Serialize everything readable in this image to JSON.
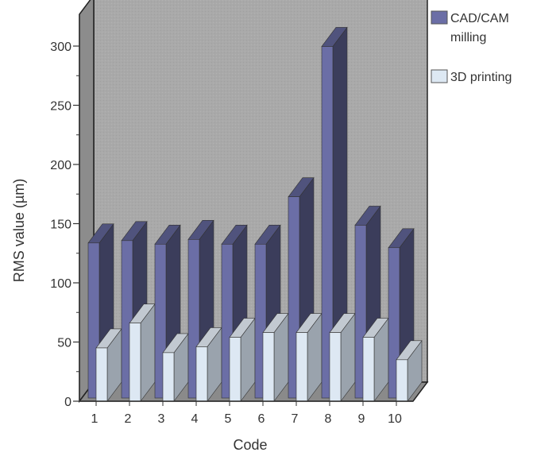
{
  "chart_data": {
    "type": "bar",
    "title": "",
    "xlabel": "Code",
    "ylabel": "RMS value (µm)",
    "categories": [
      "1",
      "2",
      "3",
      "4",
      "5",
      "6",
      "7",
      "8",
      "9",
      "10"
    ],
    "ylim": [
      0,
      300
    ],
    "yticks": [
      0,
      50,
      100,
      150,
      200,
      250,
      300
    ],
    "series": [
      {
        "name": "CAD/CAM milling",
        "name_lines": [
          "CAD/CAM",
          "milling"
        ],
        "color": "#6b6ea6",
        "values": [
          131,
          133,
          130,
          134,
          130,
          130,
          170,
          297,
          146,
          127
        ]
      },
      {
        "name": "3D printing",
        "name_lines": [
          "3D printing"
        ],
        "color": "#dde8f3",
        "values": [
          45,
          66,
          41,
          46,
          54,
          58,
          58,
          58,
          54,
          35
        ]
      }
    ],
    "grid": false,
    "legend_position": "top-right",
    "style": {
      "wall_color": "#a8a8a8",
      "floor_color": "#8a8a8a",
      "legend_box_color": "#e0e0e0"
    }
  }
}
